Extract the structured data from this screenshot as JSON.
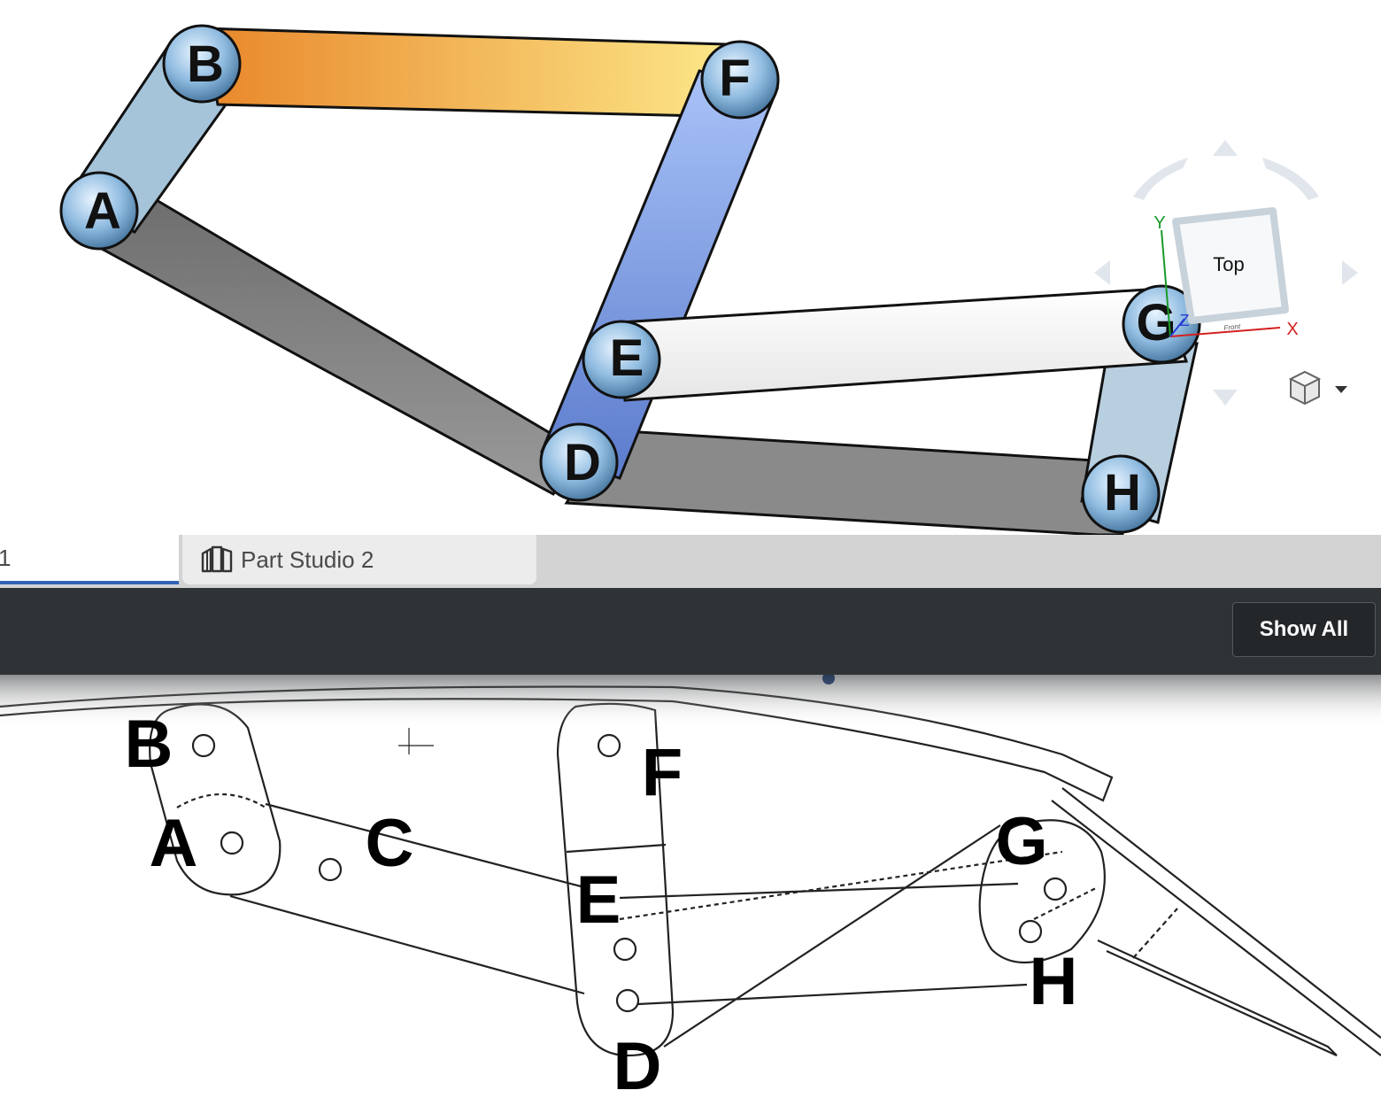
{
  "viewport": {
    "joints": [
      {
        "label": "B"
      },
      {
        "label": "F"
      },
      {
        "label": "A"
      },
      {
        "label": "E"
      },
      {
        "label": "G"
      },
      {
        "label": "D"
      },
      {
        "label": "H"
      }
    ],
    "view_cube": {
      "face_top": "Top",
      "face_front": "Front",
      "axis_x": "X",
      "axis_y": "Y",
      "axis_z": "Z"
    }
  },
  "tabs": [
    {
      "label": "1",
      "active": true
    },
    {
      "label": "Part Studio 2",
      "active": false
    }
  ],
  "toolbar": {
    "show_all_label": "Show All"
  },
  "reference": {
    "labels": [
      "B",
      "A",
      "C",
      "F",
      "E",
      "G",
      "H",
      "D"
    ]
  },
  "colors": {
    "link_ab": "#a5c4da",
    "link_bf_start": "#e8872a",
    "link_bf_end": "#fde98a",
    "link_fd": "#7f9fe0",
    "link_ad": "#858585",
    "link_eg": "#f4f4f4",
    "link_gh": "#b8cfe0",
    "tab_active_underline": "#2f63b6",
    "toolbar_bg": "#303336"
  }
}
